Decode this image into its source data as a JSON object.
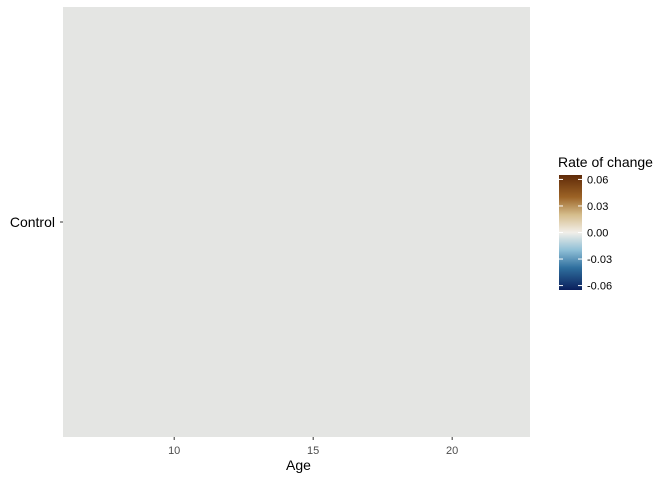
{
  "chart_data": {
    "type": "heatmap",
    "title": "",
    "xlabel": "Age",
    "ylabel": "",
    "x_ticks": [
      10,
      15,
      20
    ],
    "xlim": [
      6.0,
      22.8
    ],
    "y_categories": [
      "Control"
    ],
    "cells": [],
    "panel_background": "#e4e5e3",
    "grid": false,
    "legend": {
      "title": "Rate of change",
      "position": "right",
      "range": [
        -0.065,
        0.065
      ],
      "ticks": [
        0.06,
        0.03,
        0.0,
        -0.03,
        -0.06
      ],
      "tick_labels": [
        "0.06",
        "0.03",
        "0.00",
        "-0.03",
        "-0.06"
      ],
      "color_stops": [
        {
          "value": 0.065,
          "color": "#5f2a08"
        },
        {
          "value": 0.04,
          "color": "#9c6326"
        },
        {
          "value": 0.02,
          "color": "#d5bd8c"
        },
        {
          "value": 0.0,
          "color": "#f2efe9"
        },
        {
          "value": -0.02,
          "color": "#8fbfd6"
        },
        {
          "value": -0.04,
          "color": "#2f6f9e"
        },
        {
          "value": -0.065,
          "color": "#0a1f5c"
        }
      ]
    }
  }
}
